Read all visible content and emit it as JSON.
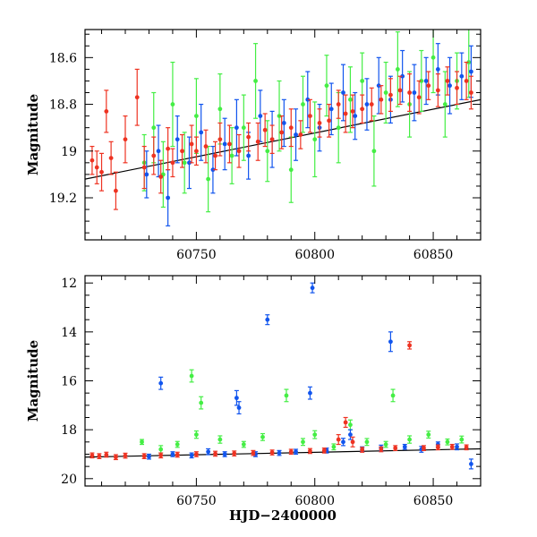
{
  "colors": {
    "red": "#ee3322",
    "green": "#44ee44",
    "blue": "#1155ee",
    "model": "#000000"
  },
  "chart_data": [
    {
      "type": "scatter",
      "title": "",
      "xlabel": "",
      "ylabel": "Magnitude",
      "xlim": [
        60703,
        60870
      ],
      "ylim": [
        19.38,
        18.48
      ],
      "y_inverted": true,
      "x_ticks": [
        "60750",
        "60800",
        "60850"
      ],
      "y_ticks": [
        "18.6",
        "18.8",
        "19",
        "19.2"
      ],
      "grid": false,
      "model_line": {
        "x": [
          60703,
          60870
        ],
        "y": [
          19.12,
          18.78
        ]
      },
      "series": [
        {
          "color": "red",
          "points": [
            [
              60706,
              19.04,
              0.06
            ],
            [
              60708,
              19.07,
              0.07
            ],
            [
              60710,
              19.09,
              0.08
            ],
            [
              60712,
              18.83,
              0.09
            ],
            [
              60714,
              19.03,
              0.07
            ],
            [
              60716,
              19.17,
              0.08
            ],
            [
              60720,
              18.95,
              0.1
            ],
            [
              60725,
              18.77,
              0.12
            ],
            [
              60728,
              19.07,
              0.09
            ],
            [
              60732,
              19.02,
              0.08
            ],
            [
              60735,
              19.11,
              0.07
            ],
            [
              60738,
              18.99,
              0.09
            ],
            [
              60740,
              19.05,
              0.06
            ],
            [
              60744,
              19.0,
              0.07
            ],
            [
              60748,
              18.97,
              0.08
            ],
            [
              60750,
              19.0,
              0.06
            ],
            [
              60754,
              18.98,
              0.07
            ],
            [
              60758,
              19.02,
              0.06
            ],
            [
              60760,
              18.95,
              0.07
            ],
            [
              60764,
              18.97,
              0.08
            ],
            [
              60768,
              19.0,
              0.07
            ],
            [
              60772,
              18.94,
              0.06
            ],
            [
              60776,
              18.96,
              0.08
            ],
            [
              60779,
              18.91,
              0.07
            ],
            [
              60782,
              18.95,
              0.06
            ],
            [
              60786,
              18.92,
              0.07
            ],
            [
              60790,
              18.9,
              0.08
            ],
            [
              60794,
              18.93,
              0.06
            ],
            [
              60798,
              18.85,
              0.07
            ],
            [
              60802,
              18.88,
              0.06
            ],
            [
              60806,
              18.87,
              0.07
            ],
            [
              60810,
              18.8,
              0.06
            ],
            [
              60813,
              18.84,
              0.08
            ],
            [
              60816,
              18.83,
              0.07
            ],
            [
              60820,
              18.82,
              0.06
            ],
            [
              60824,
              18.8,
              0.07
            ],
            [
              60828,
              18.78,
              0.06
            ],
            [
              60832,
              18.76,
              0.07
            ],
            [
              60836,
              18.74,
              0.06
            ],
            [
              60840,
              18.75,
              0.08
            ],
            [
              60844,
              18.77,
              0.07
            ],
            [
              60848,
              18.72,
              0.06
            ],
            [
              60852,
              18.74,
              0.07
            ],
            [
              60856,
              18.7,
              0.06
            ],
            [
              60860,
              18.73,
              0.07
            ],
            [
              60864,
              18.7,
              0.08
            ],
            [
              60866,
              18.75,
              0.07
            ]
          ]
        },
        {
          "color": "green",
          "points": [
            [
              60728,
              19.05,
              0.12
            ],
            [
              60732,
              18.9,
              0.15
            ],
            [
              60736,
              19.1,
              0.14
            ],
            [
              60740,
              18.8,
              0.18
            ],
            [
              60745,
              19.05,
              0.13
            ],
            [
              60750,
              18.85,
              0.16
            ],
            [
              60755,
              19.12,
              0.14
            ],
            [
              60760,
              18.82,
              0.15
            ],
            [
              60765,
              19.02,
              0.12
            ],
            [
              60770,
              18.9,
              0.14
            ],
            [
              60775,
              18.7,
              0.16
            ],
            [
              60780,
              19.0,
              0.13
            ],
            [
              60785,
              18.85,
              0.15
            ],
            [
              60790,
              19.08,
              0.14
            ],
            [
              60795,
              18.8,
              0.12
            ],
            [
              60800,
              18.95,
              0.16
            ],
            [
              60805,
              18.72,
              0.13
            ],
            [
              60810,
              18.9,
              0.15
            ],
            [
              60815,
              18.78,
              0.14
            ],
            [
              60820,
              18.7,
              0.12
            ],
            [
              60825,
              19.0,
              0.15
            ],
            [
              60830,
              18.75,
              0.13
            ],
            [
              60835,
              18.65,
              0.16
            ],
            [
              60840,
              18.8,
              0.14
            ],
            [
              60845,
              18.7,
              0.13
            ],
            [
              60850,
              18.6,
              0.15
            ],
            [
              60855,
              18.8,
              0.14
            ],
            [
              60860,
              18.7,
              0.12
            ],
            [
              60865,
              18.62,
              0.15
            ]
          ]
        },
        {
          "color": "blue",
          "points": [
            [
              60729,
              19.1,
              0.1
            ],
            [
              60734,
              19.0,
              0.11
            ],
            [
              60738,
              19.2,
              0.12
            ],
            [
              60742,
              18.95,
              0.1
            ],
            [
              60747,
              19.05,
              0.11
            ],
            [
              60752,
              18.92,
              0.12
            ],
            [
              60757,
              19.08,
              0.1
            ],
            [
              60762,
              18.97,
              0.11
            ],
            [
              60767,
              18.9,
              0.12
            ],
            [
              60772,
              19.02,
              0.1
            ],
            [
              60777,
              18.85,
              0.11
            ],
            [
              60782,
              18.95,
              0.12
            ],
            [
              60787,
              18.88,
              0.1
            ],
            [
              60792,
              18.93,
              0.11
            ],
            [
              60797,
              18.78,
              0.12
            ],
            [
              60802,
              18.9,
              0.1
            ],
            [
              60807,
              18.82,
              0.11
            ],
            [
              60812,
              18.75,
              0.12
            ],
            [
              60817,
              18.85,
              0.1
            ],
            [
              60822,
              18.8,
              0.11
            ],
            [
              60827,
              18.72,
              0.12
            ],
            [
              60832,
              18.78,
              0.1
            ],
            [
              60837,
              18.68,
              0.11
            ],
            [
              60842,
              18.75,
              0.12
            ],
            [
              60847,
              18.7,
              0.1
            ],
            [
              60852,
              18.65,
              0.11
            ],
            [
              60857,
              18.72,
              0.12
            ],
            [
              60862,
              18.68,
              0.1
            ],
            [
              60866,
              18.66,
              0.11
            ]
          ]
        }
      ]
    },
    {
      "type": "scatter",
      "title": "",
      "xlabel": "HJD−2400000",
      "ylabel": "Magnitude",
      "xlim": [
        60703,
        60870
      ],
      "ylim": [
        20.3,
        11.7
      ],
      "y_inverted": true,
      "x_ticks": [
        "60750",
        "60800",
        "60850"
      ],
      "y_ticks": [
        "12",
        "14",
        "16",
        "18",
        "20"
      ],
      "grid": false,
      "model_line": {
        "x": [
          60703,
          60870
        ],
        "y": [
          19.12,
          18.78
        ]
      },
      "series": [
        {
          "color": "red",
          "points": [
            [
              60706,
              19.05,
              0.1
            ],
            [
              60709,
              19.08,
              0.1
            ],
            [
              60712,
              19.02,
              0.1
            ],
            [
              60716,
              19.12,
              0.1
            ],
            [
              60720,
              19.06,
              0.1
            ],
            [
              60728,
              19.08,
              0.1
            ],
            [
              60735,
              19.05,
              0.1
            ],
            [
              60742,
              19.02,
              0.1
            ],
            [
              60750,
              19.0,
              0.1
            ],
            [
              60758,
              18.98,
              0.1
            ],
            [
              60766,
              18.97,
              0.1
            ],
            [
              60774,
              18.95,
              0.1
            ],
            [
              60782,
              18.93,
              0.1
            ],
            [
              60790,
              18.9,
              0.1
            ],
            [
              60798,
              18.87,
              0.1
            ],
            [
              60804,
              18.85,
              0.1
            ],
            [
              60810,
              18.4,
              0.2
            ],
            [
              60813,
              17.7,
              0.2
            ],
            [
              60816,
              18.5,
              0.2
            ],
            [
              60820,
              18.82,
              0.1
            ],
            [
              60828,
              18.8,
              0.1
            ],
            [
              60834,
              18.75,
              0.1
            ],
            [
              60840,
              14.55,
              0.15
            ],
            [
              60846,
              18.75,
              0.1
            ],
            [
              60852,
              18.72,
              0.1
            ],
            [
              60858,
              18.7,
              0.1
            ],
            [
              60864,
              18.72,
              0.1
            ]
          ]
        },
        {
          "color": "green",
          "points": [
            [
              60727,
              18.5,
              0.1
            ],
            [
              60735,
              18.8,
              0.15
            ],
            [
              60742,
              18.6,
              0.12
            ],
            [
              60748,
              15.8,
              0.25
            ],
            [
              60750,
              18.2,
              0.15
            ],
            [
              60752,
              16.9,
              0.25
            ],
            [
              60760,
              18.4,
              0.15
            ],
            [
              60770,
              18.6,
              0.12
            ],
            [
              60778,
              18.3,
              0.14
            ],
            [
              60788,
              16.6,
              0.25
            ],
            [
              60795,
              18.5,
              0.14
            ],
            [
              60800,
              18.2,
              0.16
            ],
            [
              60808,
              18.7,
              0.12
            ],
            [
              60815,
              17.8,
              0.2
            ],
            [
              60822,
              18.5,
              0.14
            ],
            [
              60830,
              18.6,
              0.12
            ],
            [
              60833,
              16.6,
              0.25
            ],
            [
              60840,
              18.4,
              0.15
            ],
            [
              60848,
              18.2,
              0.14
            ],
            [
              60856,
              18.5,
              0.12
            ],
            [
              60862,
              18.4,
              0.14
            ]
          ]
        },
        {
          "color": "blue",
          "points": [
            [
              60730,
              19.1,
              0.1
            ],
            [
              60735,
              16.1,
              0.25
            ],
            [
              60740,
              19.0,
              0.1
            ],
            [
              60748,
              19.05,
              0.1
            ],
            [
              60755,
              18.9,
              0.12
            ],
            [
              60762,
              19.0,
              0.1
            ],
            [
              60767,
              16.7,
              0.3
            ],
            [
              60768,
              17.1,
              0.25
            ],
            [
              60775,
              19.0,
              0.1
            ],
            [
              60780,
              13.5,
              0.2
            ],
            [
              60785,
              18.95,
              0.1
            ],
            [
              60792,
              18.9,
              0.1
            ],
            [
              60798,
              16.5,
              0.25
            ],
            [
              60799,
              12.2,
              0.2
            ],
            [
              60805,
              18.85,
              0.1
            ],
            [
              60812,
              18.5,
              0.15
            ],
            [
              60815,
              18.2,
              0.2
            ],
            [
              60820,
              18.8,
              0.1
            ],
            [
              60828,
              18.75,
              0.12
            ],
            [
              60832,
              14.4,
              0.4
            ],
            [
              60838,
              18.7,
              0.1
            ],
            [
              60845,
              18.8,
              0.12
            ],
            [
              60852,
              18.6,
              0.1
            ],
            [
              60860,
              18.7,
              0.12
            ],
            [
              60866,
              19.4,
              0.2
            ]
          ]
        }
      ]
    }
  ]
}
